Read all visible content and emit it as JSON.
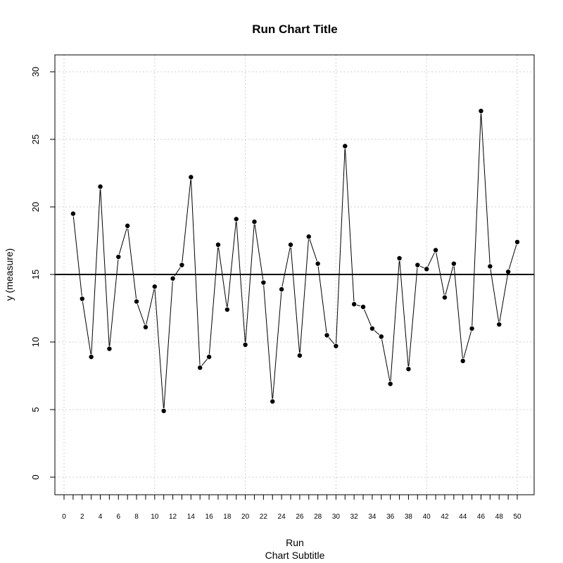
{
  "chart_data": {
    "type": "line",
    "title": "Run Chart Title",
    "xlabel": "Run",
    "subtitle": "Chart Subtitle",
    "ylabel": "y (measure)",
    "xlim": [
      0,
      50
    ],
    "ylim": [
      0,
      30
    ],
    "x_tick_labels": [
      "0",
      "2",
      "4",
      "6",
      "8",
      "10",
      "12",
      "14",
      "16",
      "18",
      "20",
      "22",
      "24",
      "26",
      "28",
      "30",
      "32",
      "34",
      "36",
      "38",
      "40",
      "42",
      "44",
      "46",
      "48",
      "50"
    ],
    "y_tick_labels": [
      "0",
      "5",
      "10",
      "15",
      "20",
      "25",
      "30"
    ],
    "grid": true,
    "reference_line": 15,
    "series": [
      {
        "x": [
          1,
          2,
          3,
          4,
          5,
          6,
          7,
          8,
          9,
          10,
          11,
          12,
          13,
          14,
          15,
          16,
          17,
          18,
          19,
          20,
          21,
          22,
          23,
          24,
          25,
          26,
          27,
          28,
          29,
          30,
          31,
          32,
          33,
          34,
          35,
          36,
          37,
          38,
          39,
          40,
          41,
          42,
          43,
          44,
          45,
          46,
          47,
          48,
          49,
          50
        ],
        "values": [
          19.5,
          13.2,
          8.9,
          21.5,
          9.5,
          16.3,
          18.6,
          13.0,
          11.1,
          14.1,
          4.9,
          14.7,
          15.7,
          22.2,
          8.1,
          8.9,
          17.2,
          12.4,
          19.1,
          9.8,
          18.9,
          14.4,
          5.6,
          13.9,
          17.2,
          9.0,
          17.8,
          15.8,
          10.5,
          9.7,
          24.5,
          12.8,
          12.6,
          11.0,
          10.4,
          6.9,
          16.2,
          8.0,
          15.7,
          15.4,
          16.8,
          13.3,
          15.8,
          8.6,
          11.0,
          27.1,
          15.6,
          11.3,
          15.2,
          17.4
        ]
      }
    ]
  }
}
